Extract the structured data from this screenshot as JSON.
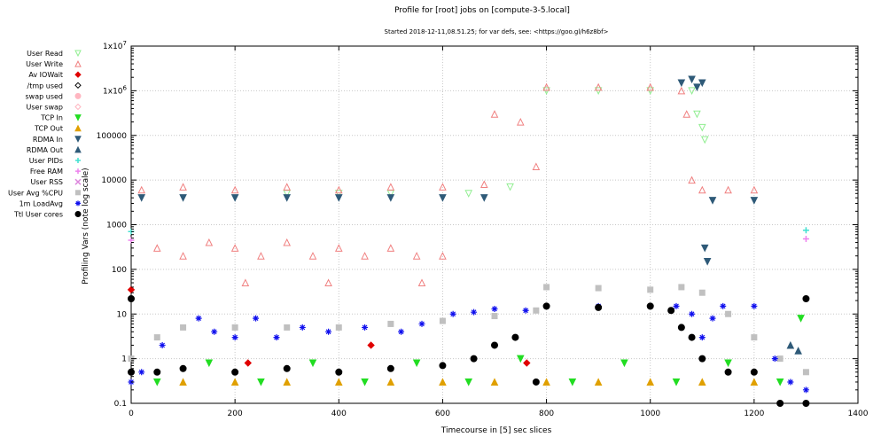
{
  "chart_data": {
    "type": "scatter",
    "title": "Profile for [root] jobs on [compute-3-5.local]",
    "subtitle": "Started 2018-12-11,08.51.25; for var defs, see: <https://goo.gl/h6z8bf>",
    "xlabel": "Timecourse in [5] sec slices",
    "ylabel": "Profiling Vars (note log scale)",
    "xlim": [
      0,
      1400
    ],
    "ylim": [
      0.1,
      10000000
    ],
    "yscale": "log",
    "grid": true,
    "legend_position": "left",
    "x_ticks": [
      "0",
      "200",
      "400",
      "600",
      "800",
      "1000",
      "1200",
      "1400"
    ],
    "y_ticks": [
      "0.1",
      "1",
      "10",
      "100",
      "1000",
      "10000",
      "100000",
      "1x10^6",
      "1x10^7"
    ],
    "series": [
      {
        "name": "User Read",
        "marker": "triangle-down-open",
        "color": "#90ee90",
        "points": [
          [
            300,
            5000
          ],
          [
            400,
            5000
          ],
          [
            500,
            5000
          ],
          [
            650,
            5000
          ],
          [
            730,
            7000
          ],
          [
            800,
            1000000
          ],
          [
            900,
            1000000
          ],
          [
            1000,
            1000000
          ],
          [
            1080,
            1000000
          ],
          [
            1090,
            300000
          ],
          [
            1100,
            150000
          ],
          [
            1105,
            80000
          ]
        ]
      },
      {
        "name": "User Write",
        "marker": "triangle-up-open",
        "color": "#f08080",
        "points": [
          [
            20,
            6000
          ],
          [
            100,
            7000
          ],
          [
            200,
            6000
          ],
          [
            300,
            7000
          ],
          [
            400,
            6000
          ],
          [
            500,
            7000
          ],
          [
            600,
            7000
          ],
          [
            680,
            8000
          ],
          [
            700,
            300000
          ],
          [
            750,
            200000
          ],
          [
            780,
            20000
          ],
          [
            800,
            1200000
          ],
          [
            900,
            1200000
          ],
          [
            1000,
            1200000
          ],
          [
            1060,
            1000000
          ],
          [
            1070,
            300000
          ],
          [
            1080,
            10000
          ],
          [
            1100,
            6000
          ],
          [
            1150,
            6000
          ],
          [
            1200,
            6000
          ],
          [
            50,
            300
          ],
          [
            100,
            200
          ],
          [
            150,
            400
          ],
          [
            200,
            300
          ],
          [
            250,
            200
          ],
          [
            300,
            400
          ],
          [
            350,
            200
          ],
          [
            400,
            300
          ],
          [
            450,
            200
          ],
          [
            500,
            300
          ],
          [
            550,
            200
          ],
          [
            600,
            200
          ],
          [
            220,
            50
          ],
          [
            380,
            50
          ],
          [
            560,
            50
          ]
        ]
      },
      {
        "name": "Av IOWait",
        "marker": "diamond",
        "color": "#e00000",
        "points": [
          [
            0,
            35
          ],
          [
            225,
            0.8
          ],
          [
            462,
            2
          ],
          [
            762,
            0.8
          ]
        ]
      },
      {
        "name": "/tmp used",
        "marker": "diamond-open",
        "color": "#000000",
        "points": []
      },
      {
        "name": "swap used",
        "marker": "circle",
        "color": "#ffb6c1",
        "points": []
      },
      {
        "name": "User swap",
        "marker": "diamond-open",
        "color": "#ffb6c1",
        "points": []
      },
      {
        "name": "TCP In",
        "marker": "triangle-down",
        "color": "#22dd22",
        "points": [
          [
            50,
            0.3
          ],
          [
            150,
            0.8
          ],
          [
            250,
            0.3
          ],
          [
            350,
            0.8
          ],
          [
            450,
            0.3
          ],
          [
            550,
            0.8
          ],
          [
            650,
            0.3
          ],
          [
            750,
            1
          ],
          [
            850,
            0.3
          ],
          [
            950,
            0.8
          ],
          [
            1050,
            0.3
          ],
          [
            1150,
            0.8
          ],
          [
            1250,
            0.3
          ],
          [
            1290,
            8
          ]
        ]
      },
      {
        "name": "TCP Out",
        "marker": "triangle-up",
        "color": "#e0a000",
        "points": [
          [
            100,
            0.3
          ],
          [
            200,
            0.3
          ],
          [
            300,
            0.3
          ],
          [
            400,
            0.3
          ],
          [
            500,
            0.3
          ],
          [
            600,
            0.3
          ],
          [
            700,
            0.3
          ],
          [
            800,
            0.3
          ],
          [
            900,
            0.3
          ],
          [
            1000,
            0.3
          ],
          [
            1100,
            0.3
          ],
          [
            1200,
            0.3
          ]
        ]
      },
      {
        "name": "RDMA In",
        "marker": "triangle-down",
        "color": "#2f5a78",
        "points": [
          [
            20,
            4000
          ],
          [
            100,
            4000
          ],
          [
            200,
            4000
          ],
          [
            300,
            4000
          ],
          [
            400,
            4000
          ],
          [
            500,
            4000
          ],
          [
            600,
            4000
          ],
          [
            680,
            4000
          ],
          [
            1060,
            1500000
          ],
          [
            1080,
            1800000
          ],
          [
            1090,
            1200000
          ],
          [
            1100,
            1500000
          ],
          [
            1105,
            300
          ],
          [
            1110,
            150
          ],
          [
            1120,
            3500
          ],
          [
            1200,
            3500
          ]
        ]
      },
      {
        "name": "RDMA Out",
        "marker": "triangle-up",
        "color": "#2f5a78",
        "points": [
          [
            1270,
            2
          ],
          [
            1285,
            1.5
          ]
        ]
      },
      {
        "name": "User PIDs",
        "marker": "plus",
        "color": "#40e0d0",
        "points": [
          [
            0,
            700
          ],
          [
            1300,
            750
          ]
        ]
      },
      {
        "name": "Free RAM",
        "marker": "plus",
        "color": "#ee82ee",
        "points": [
          [
            0,
            450
          ],
          [
            1300,
            480
          ]
        ]
      },
      {
        "name": "User RSS",
        "marker": "x",
        "color": "#dd88dd",
        "points": []
      },
      {
        "name": "User Avg %CPU",
        "marker": "square",
        "color": "#c0c0c0",
        "points": [
          [
            0,
            1
          ],
          [
            50,
            3
          ],
          [
            100,
            5
          ],
          [
            200,
            5
          ],
          [
            300,
            5
          ],
          [
            400,
            5
          ],
          [
            500,
            6
          ],
          [
            600,
            7
          ],
          [
            700,
            9
          ],
          [
            780,
            12
          ],
          [
            800,
            40
          ],
          [
            900,
            38
          ],
          [
            1000,
            35
          ],
          [
            1060,
            40
          ],
          [
            1100,
            30
          ],
          [
            1150,
            10
          ],
          [
            1200,
            3
          ],
          [
            1250,
            1
          ],
          [
            1300,
            0.5
          ]
        ]
      },
      {
        "name": "1m LoadAvg",
        "marker": "asterisk",
        "color": "#1010ee",
        "points": [
          [
            0,
            0.3
          ],
          [
            20,
            0.5
          ],
          [
            60,
            2
          ],
          [
            130,
            8
          ],
          [
            160,
            4
          ],
          [
            200,
            3
          ],
          [
            240,
            8
          ],
          [
            280,
            3
          ],
          [
            330,
            5
          ],
          [
            380,
            4
          ],
          [
            450,
            5
          ],
          [
            520,
            4
          ],
          [
            560,
            6
          ],
          [
            620,
            10
          ],
          [
            660,
            11
          ],
          [
            700,
            13
          ],
          [
            760,
            12
          ],
          [
            800,
            15
          ],
          [
            900,
            15
          ],
          [
            1000,
            15
          ],
          [
            1050,
            15
          ],
          [
            1080,
            10
          ],
          [
            1100,
            3
          ],
          [
            1120,
            8
          ],
          [
            1140,
            15
          ],
          [
            1200,
            15
          ],
          [
            1240,
            1
          ],
          [
            1270,
            0.3
          ],
          [
            1300,
            0.2
          ]
        ]
      },
      {
        "name": "Ttl User cores",
        "marker": "circle",
        "color": "#000000",
        "points": [
          [
            0,
            0.5
          ],
          [
            50,
            0.5
          ],
          [
            100,
            0.6
          ],
          [
            200,
            0.5
          ],
          [
            300,
            0.6
          ],
          [
            400,
            0.5
          ],
          [
            500,
            0.6
          ],
          [
            600,
            0.7
          ],
          [
            660,
            1
          ],
          [
            700,
            2
          ],
          [
            740,
            3
          ],
          [
            780,
            0.3
          ],
          [
            800,
            15
          ],
          [
            900,
            14
          ],
          [
            1000,
            15
          ],
          [
            1040,
            12
          ],
          [
            1060,
            5
          ],
          [
            1080,
            3
          ],
          [
            1100,
            1
          ],
          [
            1150,
            0.5
          ],
          [
            1200,
            0.5
          ],
          [
            1250,
            0.1
          ],
          [
            1300,
            0.1
          ],
          [
            0,
            22
          ],
          [
            1300,
            22
          ]
        ]
      }
    ]
  }
}
